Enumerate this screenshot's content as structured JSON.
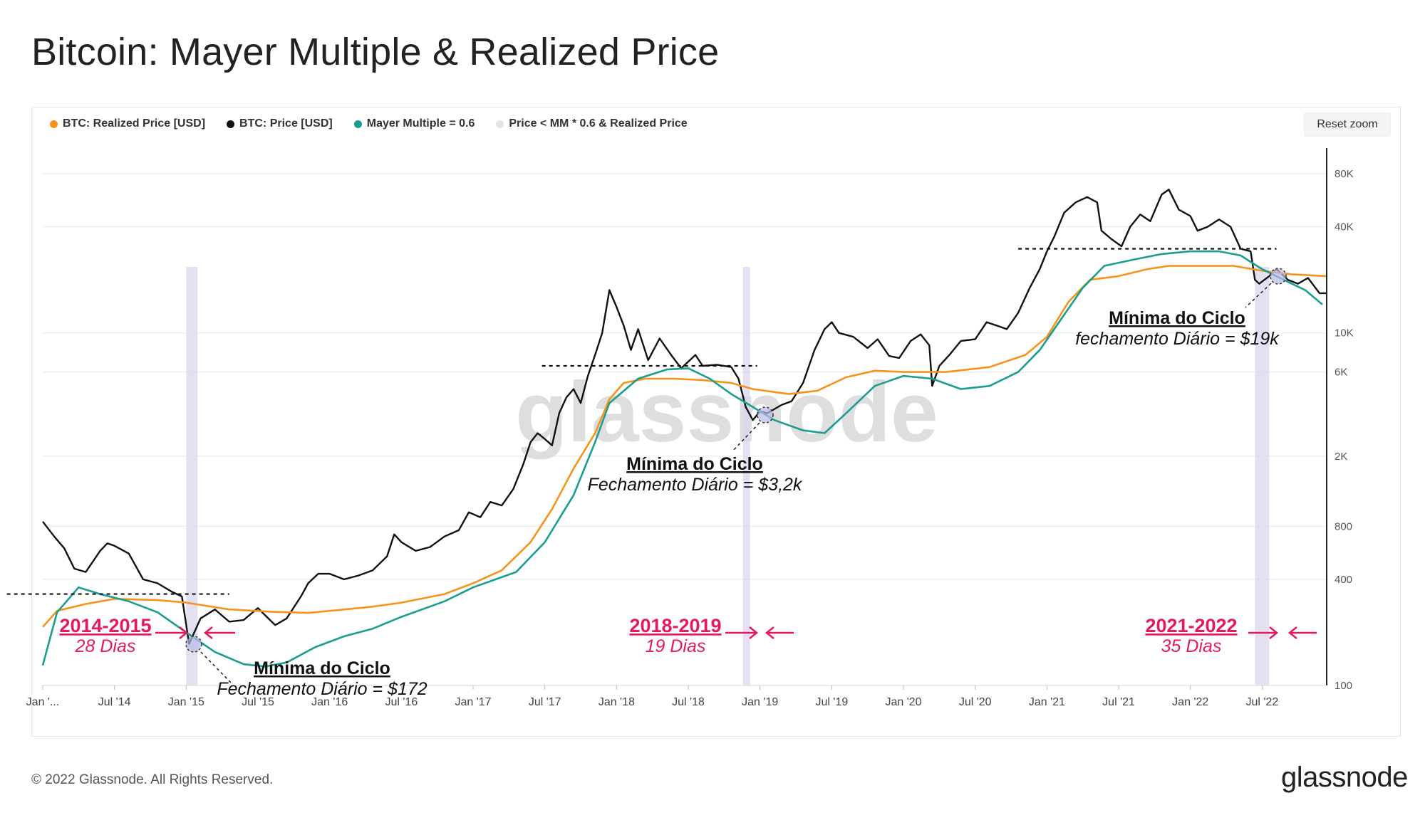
{
  "title": "Bitcoin: Mayer Multiple & Realized Price",
  "legend": [
    {
      "label": "BTC: Realized Price [USD]",
      "color": "#f7931a"
    },
    {
      "label": "BTC: Price [USD]",
      "color": "#111111"
    },
    {
      "label": "Mayer Multiple = 0.6",
      "color": "#1a9e8f"
    },
    {
      "label": "Price < MM * 0.6 & Realized Price",
      "color": "#e4e0ee"
    }
  ],
  "reset_zoom": "Reset zoom",
  "watermark": "glassnode",
  "footer": {
    "copyright": "© 2022 Glassnode. All Rights Reserved.",
    "logo": "glassnode"
  },
  "annotations": {
    "period_2015": {
      "years": "2014-2015",
      "days": "28 Dias"
    },
    "period_2019": {
      "years": "2018-2019",
      "days": "19 Dias"
    },
    "period_2022": {
      "years": "2021-2022",
      "days": "35 Dias"
    },
    "low_2015": {
      "title": "Mínima do Ciclo",
      "sub": "Fechamento Diário = $172"
    },
    "low_2018": {
      "title": "Mínima do Ciclo",
      "sub": "Fechamento Diário = $3,2k"
    },
    "low_2022": {
      "title": "Mínima do Ciclo",
      "sub": "fechamento Diário = $19k"
    }
  },
  "chart_data": {
    "type": "line",
    "y_scale": "log",
    "ylim": [
      100,
      100000
    ],
    "y_ticks": [
      {
        "label": "100",
        "value": 100
      },
      {
        "label": "400",
        "value": 400
      },
      {
        "label": "800",
        "value": 800
      },
      {
        "label": "2K",
        "value": 2000
      },
      {
        "label": "6K",
        "value": 6000
      },
      {
        "label": "10K",
        "value": 10000
      },
      {
        "label": "40K",
        "value": 40000
      },
      {
        "label": "80K",
        "value": 80000
      }
    ],
    "x_range": [
      2014.0,
      2022.95
    ],
    "x_ticks": [
      {
        "label": "Jan '...",
        "value": 2014.0
      },
      {
        "label": "Jul '14",
        "value": 2014.5
      },
      {
        "label": "Jan '15",
        "value": 2015.0
      },
      {
        "label": "Jul '15",
        "value": 2015.5
      },
      {
        "label": "Jan '16",
        "value": 2016.0
      },
      {
        "label": "Jul '16",
        "value": 2016.5
      },
      {
        "label": "Jan '17",
        "value": 2017.0
      },
      {
        "label": "Jul '17",
        "value": 2017.5
      },
      {
        "label": "Jan '18",
        "value": 2018.0
      },
      {
        "label": "Jul '18",
        "value": 2018.5
      },
      {
        "label": "Jan '19",
        "value": 2019.0
      },
      {
        "label": "Jul '19",
        "value": 2019.5
      },
      {
        "label": "Jan '20",
        "value": 2020.0
      },
      {
        "label": "Jul '20",
        "value": 2020.5
      },
      {
        "label": "Jan '21",
        "value": 2021.0
      },
      {
        "label": "Jul '21",
        "value": 2021.5
      },
      {
        "label": "Jan '22",
        "value": 2022.0
      },
      {
        "label": "Jul '22",
        "value": 2022.5
      }
    ],
    "series": [
      {
        "name": "BTC: Price [USD]",
        "color": "#111111",
        "points": [
          [
            2014.0,
            850
          ],
          [
            2014.08,
            700
          ],
          [
            2014.15,
            600
          ],
          [
            2014.22,
            460
          ],
          [
            2014.3,
            440
          ],
          [
            2014.4,
            580
          ],
          [
            2014.45,
            640
          ],
          [
            2014.5,
            620
          ],
          [
            2014.6,
            560
          ],
          [
            2014.7,
            400
          ],
          [
            2014.8,
            380
          ],
          [
            2014.9,
            340
          ],
          [
            2014.97,
            320
          ],
          [
            2015.02,
            172
          ],
          [
            2015.1,
            240
          ],
          [
            2015.2,
            270
          ],
          [
            2015.3,
            230
          ],
          [
            2015.4,
            235
          ],
          [
            2015.5,
            275
          ],
          [
            2015.55,
            250
          ],
          [
            2015.62,
            220
          ],
          [
            2015.7,
            240
          ],
          [
            2015.8,
            320
          ],
          [
            2015.85,
            380
          ],
          [
            2015.92,
            430
          ],
          [
            2016.0,
            430
          ],
          [
            2016.1,
            400
          ],
          [
            2016.2,
            420
          ],
          [
            2016.3,
            450
          ],
          [
            2016.4,
            540
          ],
          [
            2016.45,
            720
          ],
          [
            2016.5,
            650
          ],
          [
            2016.6,
            580
          ],
          [
            2016.7,
            610
          ],
          [
            2016.8,
            700
          ],
          [
            2016.9,
            760
          ],
          [
            2016.97,
            960
          ],
          [
            2017.05,
            900
          ],
          [
            2017.12,
            1100
          ],
          [
            2017.2,
            1050
          ],
          [
            2017.28,
            1300
          ],
          [
            2017.35,
            1800
          ],
          [
            2017.4,
            2400
          ],
          [
            2017.45,
            2700
          ],
          [
            2017.5,
            2500
          ],
          [
            2017.55,
            2300
          ],
          [
            2017.6,
            3500
          ],
          [
            2017.65,
            4300
          ],
          [
            2017.7,
            4800
          ],
          [
            2017.75,
            4000
          ],
          [
            2017.8,
            5700
          ],
          [
            2017.85,
            7500
          ],
          [
            2017.9,
            10000
          ],
          [
            2017.95,
            17500
          ],
          [
            2018.0,
            14000
          ],
          [
            2018.05,
            11000
          ],
          [
            2018.1,
            8000
          ],
          [
            2018.15,
            10500
          ],
          [
            2018.22,
            7000
          ],
          [
            2018.3,
            9300
          ],
          [
            2018.38,
            7500
          ],
          [
            2018.45,
            6300
          ],
          [
            2018.55,
            7500
          ],
          [
            2018.6,
            6500
          ],
          [
            2018.7,
            6600
          ],
          [
            2018.8,
            6400
          ],
          [
            2018.85,
            5500
          ],
          [
            2018.9,
            3800
          ],
          [
            2018.95,
            3200
          ],
          [
            2019.0,
            3600
          ],
          [
            2019.05,
            3500
          ],
          [
            2019.15,
            3900
          ],
          [
            2019.22,
            4100
          ],
          [
            2019.3,
            5200
          ],
          [
            2019.38,
            8000
          ],
          [
            2019.45,
            10500
          ],
          [
            2019.5,
            11500
          ],
          [
            2019.55,
            10000
          ],
          [
            2019.65,
            9500
          ],
          [
            2019.75,
            8200
          ],
          [
            2019.82,
            9200
          ],
          [
            2019.9,
            7400
          ],
          [
            2019.97,
            7200
          ],
          [
            2020.05,
            9000
          ],
          [
            2020.12,
            9800
          ],
          [
            2020.18,
            8500
          ],
          [
            2020.2,
            5000
          ],
          [
            2020.25,
            6500
          ],
          [
            2020.32,
            7500
          ],
          [
            2020.4,
            9000
          ],
          [
            2020.5,
            9200
          ],
          [
            2020.58,
            11500
          ],
          [
            2020.65,
            11000
          ],
          [
            2020.72,
            10500
          ],
          [
            2020.8,
            13000
          ],
          [
            2020.88,
            18000
          ],
          [
            2020.95,
            23000
          ],
          [
            2021.0,
            29000
          ],
          [
            2021.05,
            35000
          ],
          [
            2021.12,
            48000
          ],
          [
            2021.2,
            55000
          ],
          [
            2021.28,
            59000
          ],
          [
            2021.35,
            55000
          ],
          [
            2021.38,
            38000
          ],
          [
            2021.45,
            34000
          ],
          [
            2021.52,
            31000
          ],
          [
            2021.58,
            40000
          ],
          [
            2021.65,
            47000
          ],
          [
            2021.72,
            43000
          ],
          [
            2021.8,
            61000
          ],
          [
            2021.85,
            65000
          ],
          [
            2021.92,
            50000
          ],
          [
            2022.0,
            46000
          ],
          [
            2022.05,
            38000
          ],
          [
            2022.12,
            40000
          ],
          [
            2022.2,
            44000
          ],
          [
            2022.28,
            40000
          ],
          [
            2022.35,
            30000
          ],
          [
            2022.42,
            29000
          ],
          [
            2022.45,
            20000
          ],
          [
            2022.48,
            19000
          ],
          [
            2022.55,
            21000
          ],
          [
            2022.6,
            23000
          ],
          [
            2022.68,
            20000
          ],
          [
            2022.75,
            19000
          ],
          [
            2022.82,
            20500
          ],
          [
            2022.9,
            16800
          ],
          [
            2022.95,
            16800
          ]
        ]
      },
      {
        "name": "BTC: Realized Price [USD]",
        "color": "#f7931a",
        "points": [
          [
            2014.0,
            215
          ],
          [
            2014.1,
            265
          ],
          [
            2014.3,
            290
          ],
          [
            2014.5,
            310
          ],
          [
            2014.8,
            305
          ],
          [
            2015.0,
            295
          ],
          [
            2015.3,
            270
          ],
          [
            2015.6,
            262
          ],
          [
            2015.85,
            258
          ],
          [
            2016.0,
            265
          ],
          [
            2016.3,
            280
          ],
          [
            2016.5,
            295
          ],
          [
            2016.8,
            330
          ],
          [
            2017.0,
            380
          ],
          [
            2017.2,
            450
          ],
          [
            2017.4,
            650
          ],
          [
            2017.55,
            1000
          ],
          [
            2017.7,
            1700
          ],
          [
            2017.85,
            2700
          ],
          [
            2017.95,
            4200
          ],
          [
            2018.05,
            5200
          ],
          [
            2018.2,
            5500
          ],
          [
            2018.4,
            5500
          ],
          [
            2018.6,
            5400
          ],
          [
            2018.8,
            5200
          ],
          [
            2018.95,
            4800
          ],
          [
            2019.2,
            4500
          ],
          [
            2019.4,
            4700
          ],
          [
            2019.6,
            5600
          ],
          [
            2019.8,
            6100
          ],
          [
            2020.0,
            6000
          ],
          [
            2020.3,
            6000
          ],
          [
            2020.6,
            6400
          ],
          [
            2020.85,
            7500
          ],
          [
            2021.0,
            9500
          ],
          [
            2021.15,
            15000
          ],
          [
            2021.3,
            20000
          ],
          [
            2021.5,
            21000
          ],
          [
            2021.7,
            23000
          ],
          [
            2021.85,
            24000
          ],
          [
            2022.0,
            24000
          ],
          [
            2022.3,
            24000
          ],
          [
            2022.5,
            22500
          ],
          [
            2022.7,
            21500
          ],
          [
            2022.95,
            21000
          ]
        ]
      },
      {
        "name": "Mayer Multiple = 0.6",
        "color": "#1a9e8f",
        "points": [
          [
            2014.0,
            130
          ],
          [
            2014.1,
            260
          ],
          [
            2014.25,
            360
          ],
          [
            2014.4,
            330
          ],
          [
            2014.6,
            300
          ],
          [
            2014.8,
            260
          ],
          [
            2015.0,
            200
          ],
          [
            2015.2,
            155
          ],
          [
            2015.4,
            132
          ],
          [
            2015.55,
            128
          ],
          [
            2015.7,
            135
          ],
          [
            2015.9,
            165
          ],
          [
            2016.1,
            190
          ],
          [
            2016.3,
            210
          ],
          [
            2016.5,
            245
          ],
          [
            2016.8,
            300
          ],
          [
            2017.0,
            360
          ],
          [
            2017.3,
            440
          ],
          [
            2017.5,
            650
          ],
          [
            2017.7,
            1200
          ],
          [
            2017.85,
            2400
          ],
          [
            2017.95,
            4000
          ],
          [
            2018.15,
            5500
          ],
          [
            2018.35,
            6200
          ],
          [
            2018.5,
            6300
          ],
          [
            2018.65,
            5500
          ],
          [
            2018.8,
            4500
          ],
          [
            2018.95,
            3800
          ],
          [
            2019.1,
            3200
          ],
          [
            2019.3,
            2800
          ],
          [
            2019.45,
            2700
          ],
          [
            2019.6,
            3500
          ],
          [
            2019.8,
            5000
          ],
          [
            2020.0,
            5700
          ],
          [
            2020.2,
            5500
          ],
          [
            2020.4,
            4800
          ],
          [
            2020.6,
            5000
          ],
          [
            2020.8,
            6000
          ],
          [
            2020.95,
            8000
          ],
          [
            2021.1,
            12000
          ],
          [
            2021.25,
            18000
          ],
          [
            2021.4,
            24000
          ],
          [
            2021.6,
            26000
          ],
          [
            2021.8,
            28000
          ],
          [
            2022.0,
            29000
          ],
          [
            2022.2,
            29000
          ],
          [
            2022.35,
            27500
          ],
          [
            2022.5,
            23000
          ],
          [
            2022.65,
            20000
          ],
          [
            2022.8,
            17500
          ],
          [
            2022.92,
            14500
          ]
        ]
      }
    ],
    "shaded_periods": [
      [
        2015.0,
        2015.08
      ],
      [
        2018.88,
        2018.93
      ],
      [
        2022.45,
        2022.55
      ]
    ],
    "reference_lines": [
      {
        "y": 330,
        "x_start": 2013.75,
        "x_end": 2015.3
      },
      {
        "y": 6500,
        "x_start": 2017.48,
        "x_end": 2018.98
      },
      {
        "y": 30000,
        "x_start": 2020.8,
        "x_end": 2022.6
      }
    ]
  }
}
